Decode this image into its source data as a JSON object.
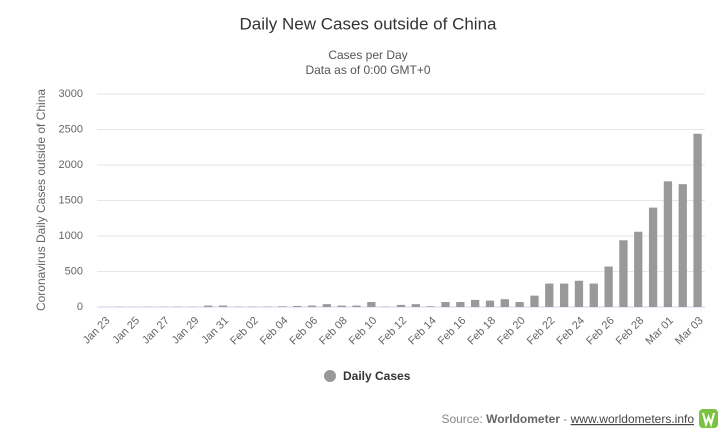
{
  "chart_data": {
    "type": "bar",
    "title": "Daily New Cases outside of China",
    "subtitle": [
      "Cases per Day",
      "Data as of 0:00 GMT+0"
    ],
    "y_label": "Coronavirus Daily Cases outside of China",
    "categories": [
      "Jan 23",
      null,
      "Jan 25",
      null,
      "Jan 27",
      null,
      "Jan 29",
      null,
      "Jan 31",
      null,
      "Feb 02",
      null,
      "Feb 04",
      null,
      "Feb 06",
      null,
      "Feb 08",
      null,
      "Feb 10",
      null,
      "Feb 12",
      null,
      "Feb 14",
      null,
      "Feb 16",
      null,
      "Feb 18",
      null,
      "Feb 20",
      null,
      "Feb 22",
      null,
      "Feb 24",
      null,
      "Feb 26",
      null,
      "Feb 28",
      null,
      "Mar 01",
      null,
      "Mar 03"
    ],
    "series": [
      {
        "name": "Daily Cases",
        "color": "#999999",
        "values": [
          1,
          3,
          2,
          3,
          4,
          5,
          3,
          20,
          20,
          5,
          5,
          5,
          10,
          15,
          20,
          40,
          20,
          20,
          70,
          5,
          30,
          40,
          10,
          70,
          70,
          100,
          90,
          110,
          70,
          160,
          330,
          330,
          370,
          330,
          570,
          940,
          1060,
          1400,
          1770,
          1730,
          2440
        ]
      }
    ],
    "ylim": [
      0,
      3000
    ],
    "yticks": [
      0,
      500,
      1000,
      1500,
      2000,
      2500,
      3000
    ],
    "grid": true,
    "legend": "bottom"
  },
  "source": {
    "label": "Source:",
    "name": "Worldometer",
    "separator": "-",
    "url": "www.worldometers.info"
  }
}
